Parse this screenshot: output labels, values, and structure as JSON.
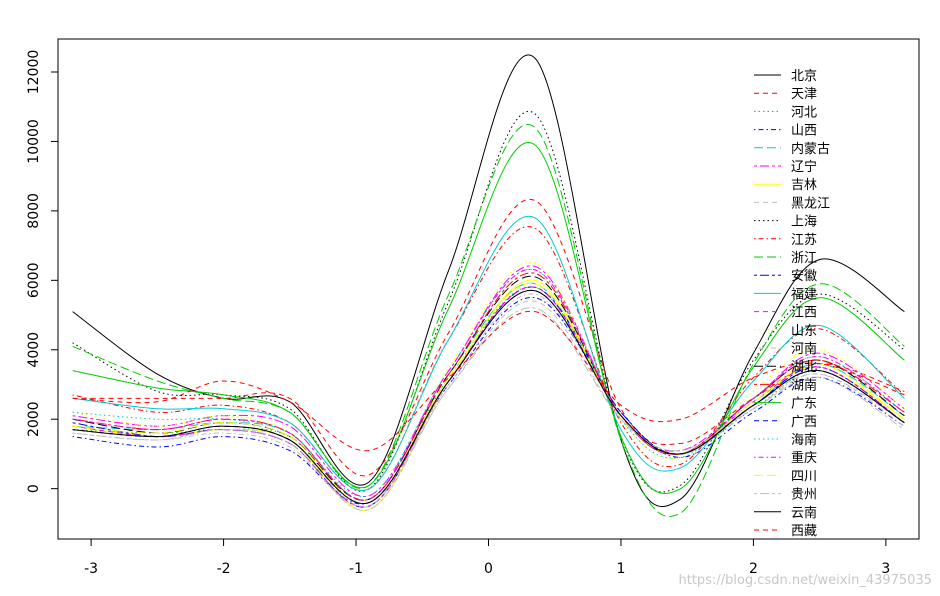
{
  "chart_data": {
    "type": "line",
    "title": "",
    "xlabel": "",
    "ylabel": "",
    "xlim": [
      -3.25,
      3.25
    ],
    "ylim": [
      -1450,
      12950
    ],
    "x_ticks": [
      -3,
      -2,
      -1,
      0,
      1,
      2,
      3
    ],
    "y_ticks": [
      0,
      2000,
      4000,
      6000,
      8000,
      10000,
      12000
    ],
    "legend_position": "top-right",
    "grid": false,
    "x_knots": [
      -3.14,
      -2.5,
      -2.0,
      -1.5,
      -0.9,
      -0.3,
      0.35,
      1.0,
      1.45,
      2.0,
      2.5,
      3.14
    ],
    "series": [
      {
        "name": "北京",
        "color": "#000000",
        "dash": "solid",
        "values": [
          5100,
          3300,
          2600,
          2500,
          200,
          6300,
          12400,
          1400,
          -300,
          3900,
          6600,
          5100
        ]
      },
      {
        "name": "天津",
        "color": "#ff0000",
        "dash": "dashed",
        "values": [
          2600,
          2600,
          2600,
          2600,
          400,
          4500,
          8300,
          2300,
          1300,
          2600,
          3600,
          2800
        ]
      },
      {
        "name": "河北",
        "color": "#00cd00",
        "dash": "dotted",
        "values": [
          1700,
          1600,
          1700,
          1500,
          -400,
          3200,
          5800,
          2100,
          1000,
          2300,
          3400,
          1900
        ]
      },
      {
        "name": "山西",
        "color": "#0000ff",
        "dash": "dotdash",
        "values": [
          1500,
          1200,
          1500,
          1100,
          -400,
          3000,
          5500,
          2200,
          900,
          2200,
          3200,
          1800
        ]
      },
      {
        "name": "内蒙古",
        "color": "#00cdcd",
        "dash": "longdash",
        "values": [
          1800,
          1700,
          1900,
          1600,
          -300,
          3300,
          5900,
          2100,
          1000,
          2400,
          3600,
          2100
        ]
      },
      {
        "name": "辽宁",
        "color": "#ff00ff",
        "dash": "twodash",
        "values": [
          2100,
          1800,
          2100,
          1800,
          -200,
          3400,
          6400,
          2100,
          1100,
          2600,
          3900,
          2300
        ]
      },
      {
        "name": "吉林",
        "color": "#ffff00",
        "dash": "solid",
        "values": [
          1800,
          1500,
          1700,
          1400,
          -600,
          3100,
          6000,
          2100,
          1000,
          2500,
          3500,
          2000
        ]
      },
      {
        "name": "黑龙江",
        "color": "#bebebe",
        "dash": "dashed",
        "values": [
          1700,
          1500,
          1700,
          1400,
          -500,
          2900,
          5400,
          2000,
          1000,
          2400,
          3300,
          1900
        ]
      },
      {
        "name": "上海",
        "color": "#000000",
        "dash": "dotted",
        "values": [
          4200,
          2800,
          2700,
          2300,
          0,
          5400,
          10800,
          1500,
          100,
          3700,
          5600,
          4000
        ]
      },
      {
        "name": "江苏",
        "color": "#ff0000",
        "dash": "dotdash",
        "values": [
          2700,
          2200,
          2400,
          1900,
          0,
          4300,
          7500,
          1900,
          700,
          3200,
          4600,
          2700
        ]
      },
      {
        "name": "浙江",
        "color": "#00cd00",
        "dash": "longdash",
        "values": [
          4100,
          3100,
          2600,
          2200,
          100,
          5600,
          10400,
          1400,
          -700,
          3600,
          5900,
          4100
        ]
      },
      {
        "name": "安徽",
        "color": "#0000ff",
        "dash": "twodash",
        "values": [
          1900,
          1500,
          1700,
          1300,
          -500,
          3100,
          5800,
          2200,
          1000,
          2400,
          3500,
          1900
        ]
      },
      {
        "name": "福建",
        "color": "#00cdcd",
        "dash": "solid",
        "values": [
          2600,
          2300,
          2300,
          1900,
          0,
          4300,
          7800,
          1700,
          600,
          3100,
          4700,
          2600
        ]
      },
      {
        "name": "江西",
        "color": "#ff00ff",
        "dash": "dashed",
        "values": [
          1800,
          1500,
          1700,
          1300,
          -500,
          3100,
          5800,
          2100,
          1000,
          2500,
          3500,
          1900
        ]
      },
      {
        "name": "山东",
        "color": "#ffff00",
        "dash": "dotted",
        "values": [
          2200,
          1800,
          2100,
          1600,
          -300,
          3500,
          6500,
          2000,
          900,
          2800,
          4000,
          2300
        ]
      },
      {
        "name": "河南",
        "color": "#bebebe",
        "dash": "dotdash",
        "values": [
          1600,
          1400,
          1600,
          1200,
          -500,
          3000,
          5600,
          2100,
          1000,
          2300,
          3300,
          1800
        ]
      },
      {
        "name": "湖北",
        "color": "#000000",
        "dash": "longdash",
        "values": [
          2000,
          1600,
          1900,
          1500,
          -300,
          3300,
          6100,
          2100,
          1000,
          2600,
          3700,
          2100
        ]
      },
      {
        "name": "湖南",
        "color": "#ff0000",
        "dash": "twodash",
        "values": [
          2000,
          1700,
          2000,
          1600,
          -300,
          3300,
          6200,
          2100,
          1000,
          2600,
          3700,
          2200
        ]
      },
      {
        "name": "广东",
        "color": "#00cd00",
        "dash": "solid",
        "values": [
          3400,
          2900,
          2700,
          2200,
          100,
          5200,
          9900,
          1500,
          0,
          3500,
          5500,
          3700
        ]
      },
      {
        "name": "广西",
        "color": "#0000ff",
        "dash": "dashed",
        "values": [
          1700,
          1500,
          1800,
          1400,
          -400,
          3100,
          5700,
          2100,
          1000,
          2400,
          3400,
          1900
        ]
      },
      {
        "name": "海南",
        "color": "#00cdcd",
        "dash": "dotted",
        "values": [
          2200,
          2000,
          2000,
          1600,
          -200,
          3400,
          6300,
          2000,
          900,
          2600,
          3800,
          2200
        ]
      },
      {
        "name": "重庆",
        "color": "#ff00ff",
        "dash": "dotdash",
        "values": [
          2000,
          1700,
          2000,
          1600,
          -300,
          3400,
          6300,
          2100,
          1000,
          2600,
          3800,
          2200
        ]
      },
      {
        "name": "四川",
        "color": "#ffff00",
        "dash": "longdash",
        "values": [
          1800,
          1600,
          1900,
          1500,
          -400,
          3200,
          5900,
          2100,
          1000,
          2500,
          3600,
          2000
        ]
      },
      {
        "name": "贵州",
        "color": "#bebebe",
        "dash": "twodash",
        "values": [
          1600,
          1400,
          1700,
          1300,
          -600,
          2900,
          5200,
          2000,
          1100,
          2300,
          3200,
          1700
        ]
      },
      {
        "name": "云南",
        "color": "#000000",
        "dash": "solid",
        "values": [
          1700,
          1500,
          1800,
          1400,
          -400,
          3100,
          5700,
          2100,
          1000,
          2400,
          3400,
          1900
        ]
      },
      {
        "name": "西藏",
        "color": "#ff0000",
        "dash": "dashed",
        "values": [
          2600,
          2500,
          3100,
          2500,
          1100,
          3200,
          5100,
          2400,
          2000,
          3200,
          3600,
          2700
        ]
      }
    ]
  },
  "watermark": "https://blog.csdn.net/weixin_43975035"
}
